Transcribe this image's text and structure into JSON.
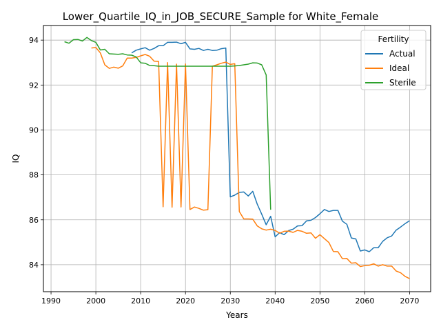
{
  "chart_data": {
    "type": "line",
    "title": "Lower_Quartile_IQ_in_JOB_SECURE_Sample for White_Female",
    "xlabel": "Years",
    "ylabel": "IQ",
    "xlim": [
      1988.3,
      2074.7
    ],
    "ylim": [
      82.8,
      94.65
    ],
    "xticks": [
      1990,
      2000,
      2010,
      2020,
      2030,
      2040,
      2050,
      2060,
      2070
    ],
    "yticks": [
      84,
      86,
      88,
      90,
      92,
      94
    ],
    "grid": true,
    "legend": {
      "title": "Fertility",
      "position": "top-right"
    },
    "series": [
      {
        "name": "Actual",
        "color": "#1f77b4",
        "x": [
          2008,
          2009,
          2010,
          2011,
          2012,
          2013,
          2014,
          2015,
          2016,
          2017,
          2018,
          2019,
          2020,
          2021,
          2022,
          2023,
          2024,
          2025,
          2026,
          2027,
          2028,
          2029,
          2030,
          2031,
          2032,
          2033,
          2034,
          2035,
          2036,
          2037,
          2038,
          2039,
          2040,
          2041,
          2042,
          2043,
          2044,
          2045,
          2046,
          2047,
          2048,
          2049,
          2050,
          2051,
          2052,
          2053,
          2054,
          2055,
          2056,
          2057,
          2058,
          2059,
          2060,
          2061,
          2062,
          2063,
          2064,
          2065,
          2066,
          2067,
          2068,
          2069,
          2070
        ],
        "y": [
          93.43,
          93.55,
          93.61,
          93.66,
          93.55,
          93.63,
          93.75,
          93.75,
          93.9,
          93.9,
          93.91,
          93.84,
          93.9,
          93.61,
          93.59,
          93.63,
          93.54,
          93.59,
          93.54,
          93.55,
          93.62,
          93.65,
          87.02,
          87.1,
          87.22,
          87.24,
          87.06,
          87.27,
          86.7,
          86.25,
          85.78,
          86.16,
          85.24,
          85.43,
          85.34,
          85.52,
          85.58,
          85.73,
          85.74,
          85.95,
          85.98,
          86.1,
          86.27,
          86.46,
          86.37,
          86.42,
          86.42,
          85.94,
          85.8,
          85.19,
          85.15,
          84.61,
          84.66,
          84.58,
          84.76,
          84.76,
          85.04,
          85.2,
          85.28,
          85.54,
          85.68,
          85.83,
          85.96
        ]
      },
      {
        "name": "Ideal",
        "color": "#ff7f0e",
        "x": [
          1999,
          2000,
          2001,
          2002,
          2003,
          2004,
          2005,
          2006,
          2007,
          2008,
          2009,
          2010,
          2011,
          2012,
          2013,
          2014,
          2015,
          2016,
          2017,
          2018,
          2019,
          2020,
          2021,
          2022,
          2023,
          2024,
          2025,
          2026,
          2027,
          2028,
          2029,
          2030,
          2031,
          2032,
          2033,
          2034,
          2035,
          2036,
          2037,
          2038,
          2039,
          2040,
          2041,
          2042,
          2043,
          2044,
          2045,
          2046,
          2047,
          2048,
          2049,
          2050,
          2051,
          2052,
          2053,
          2054,
          2055,
          2056,
          2057,
          2058,
          2059,
          2060,
          2061,
          2062,
          2063,
          2064,
          2065,
          2066,
          2067,
          2068,
          2069,
          2070
        ],
        "y": [
          93.65,
          93.67,
          93.43,
          92.9,
          92.74,
          92.8,
          92.75,
          92.85,
          93.2,
          93.2,
          93.23,
          93.3,
          93.36,
          93.28,
          93.06,
          93.05,
          86.58,
          93.0,
          86.56,
          92.93,
          86.57,
          92.94,
          86.46,
          86.57,
          86.51,
          86.43,
          86.45,
          92.84,
          92.9,
          92.97,
          93.02,
          92.92,
          92.95,
          86.37,
          86.04,
          86.04,
          86.03,
          85.73,
          85.6,
          85.54,
          85.58,
          85.53,
          85.4,
          85.49,
          85.5,
          85.44,
          85.53,
          85.49,
          85.4,
          85.42,
          85.18,
          85.34,
          85.16,
          84.99,
          84.59,
          84.58,
          84.27,
          84.28,
          84.07,
          84.09,
          83.92,
          83.96,
          83.98,
          84.04,
          83.94,
          84.0,
          83.94,
          83.94,
          83.72,
          83.64,
          83.48,
          83.38
        ]
      },
      {
        "name": "Sterile",
        "color": "#2ca02c",
        "x": [
          1993,
          1994,
          1995,
          1996,
          1997,
          1998,
          1999,
          2000,
          2001,
          2002,
          2003,
          2004,
          2005,
          2006,
          2007,
          2008,
          2009,
          2010,
          2011,
          2012,
          2013,
          2014,
          2015,
          2016,
          2017,
          2018,
          2019,
          2020,
          2021,
          2022,
          2023,
          2024,
          2025,
          2026,
          2027,
          2028,
          2029,
          2030,
          2031,
          2032,
          2033,
          2034,
          2035,
          2036,
          2037,
          2038,
          2039
        ],
        "y": [
          93.93,
          93.86,
          94.02,
          94.03,
          93.96,
          94.12,
          93.98,
          93.9,
          93.56,
          93.59,
          93.39,
          93.38,
          93.37,
          93.39,
          93.34,
          93.33,
          93.25,
          92.99,
          92.97,
          92.87,
          92.86,
          92.84,
          92.84,
          92.84,
          92.84,
          92.84,
          92.84,
          92.84,
          92.84,
          92.84,
          92.84,
          92.84,
          92.84,
          92.84,
          92.84,
          92.84,
          92.84,
          92.84,
          92.85,
          92.87,
          92.9,
          92.93,
          92.99,
          92.98,
          92.9,
          92.45,
          86.45
        ]
      }
    ]
  }
}
